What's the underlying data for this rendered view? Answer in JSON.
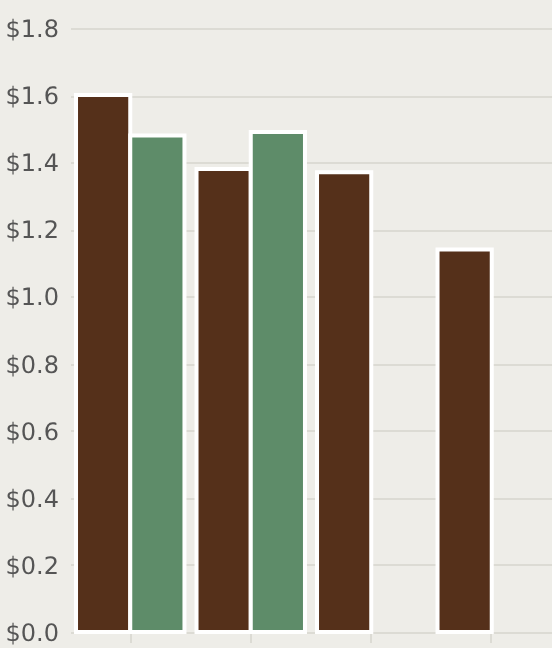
{
  "chart_data": {
    "type": "bar",
    "categories": [
      null,
      null,
      null,
      null
    ],
    "series": [
      {
        "color": "#55301a",
        "values": [
          1.6,
          1.38,
          1.37,
          1.14
        ]
      },
      {
        "color": "#5e8c69",
        "values": [
          1.48,
          1.49,
          null,
          null
        ]
      }
    ],
    "ylim": [
      0,
      1.8
    ],
    "yticks": [
      {
        "value": 0,
        "label": "$0.0"
      },
      {
        "value": 0.2,
        "label": "$0.2"
      },
      {
        "value": 0.4,
        "label": "$0.4"
      },
      {
        "value": 0.6,
        "label": "$0.6"
      },
      {
        "value": 0.8,
        "label": "$0.8"
      },
      {
        "value": 1.0,
        "label": "$1.0"
      },
      {
        "value": 1.2,
        "label": "$1.2"
      },
      {
        "value": 1.4,
        "label": "$1.4"
      },
      {
        "value": 1.6,
        "label": "$1.6"
      },
      {
        "value": 1.8,
        "label": "$1.8"
      }
    ],
    "grid": "y",
    "tick_labels": "y"
  }
}
